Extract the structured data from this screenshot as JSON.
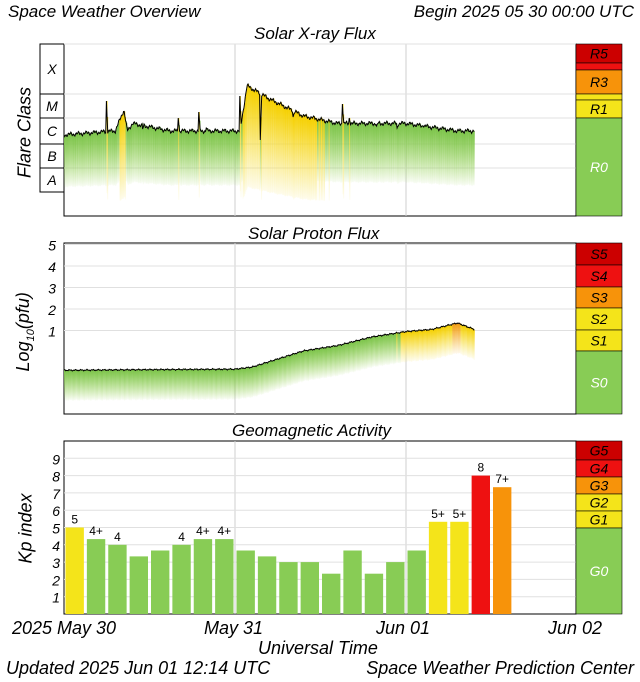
{
  "header": {
    "title": "Space Weather Overview",
    "begin_label": "Begin",
    "begin_value": "2025 05 30 00:00 UTC"
  },
  "footer": {
    "updated_label": "Updated",
    "updated_value": "2025 Jun 01 12:14 UTC",
    "credit": "Space Weather Prediction Center"
  },
  "x_axis": {
    "label": "Universal Time",
    "ticks": [
      "2025 May 30",
      "May 31",
      "Jun 01",
      "Jun 02"
    ]
  },
  "colors": {
    "green": "#88cc55",
    "yellow": "#f4e41a",
    "orange": "#f7930a",
    "red": "#ee1111",
    "darkred": "#cc0000"
  },
  "chart_data": [
    {
      "type": "area",
      "title": "Solar X-ray Flux",
      "ylabel": "Flare Class",
      "y_scale": "log",
      "y_ticks": [
        "A",
        "B",
        "C",
        "M",
        "X"
      ],
      "scale_levels": [
        "R0",
        "R1",
        "R3",
        "R5"
      ],
      "x_days_from_start": [
        0,
        0.3,
        0.35,
        0.37,
        0.4,
        0.62,
        0.8,
        1.03,
        1.07,
        1.2,
        1.4,
        1.6,
        2.0,
        2.3,
        2.4
      ],
      "flux_class": [
        "B7",
        "C1",
        "C7",
        "C1",
        "C2",
        "C1",
        "C1",
        "C1",
        "M7",
        "M2",
        "C4",
        "C2",
        "C2",
        "C1",
        "C1"
      ]
    },
    {
      "type": "area",
      "title": "Solar Proton Flux",
      "ylabel": "Log10(pfu)",
      "ylabel_main": "Log",
      "ylabel_sub": "10",
      "ylabel_tail": "(pfu)",
      "y_ticks": [
        "1",
        "2",
        "3",
        "4",
        "5"
      ],
      "scale_levels": [
        "S0",
        "S1",
        "S2",
        "S3",
        "S4",
        "S5"
      ],
      "x_days_from_start": [
        0,
        0.5,
        1.0,
        1.1,
        1.3,
        1.4,
        1.6,
        1.8,
        2.0,
        2.15,
        2.3,
        2.4
      ],
      "log_pfu": [
        -0.85,
        -0.82,
        -0.8,
        -0.7,
        -0.2,
        0.05,
        0.3,
        0.7,
        0.95,
        1.05,
        1.35,
        1.05
      ]
    },
    {
      "type": "bar",
      "title": "Geomagnetic Activity",
      "ylabel": "Kp index",
      "ylim": [
        0,
        9
      ],
      "y_ticks": [
        "1",
        "2",
        "3",
        "4",
        "5",
        "6",
        "7",
        "8",
        "9"
      ],
      "scale_levels": [
        "G0",
        "G1",
        "G2",
        "G3",
        "G4",
        "G5"
      ],
      "bar_interval_hours": 3,
      "values": [
        5.0,
        4.33,
        4.0,
        3.33,
        3.67,
        4.0,
        4.33,
        4.33,
        3.67,
        3.33,
        3.0,
        3.0,
        2.33,
        3.67,
        2.33,
        3.0,
        3.67,
        5.33,
        5.33,
        8.0,
        7.33
      ],
      "labels": [
        "5",
        "4+",
        "4",
        "",
        "",
        "4",
        "4+",
        "4+",
        "",
        "",
        "",
        "",
        "",
        "",
        "",
        "",
        "",
        "5+",
        "5+",
        "8",
        "7+"
      ]
    }
  ]
}
